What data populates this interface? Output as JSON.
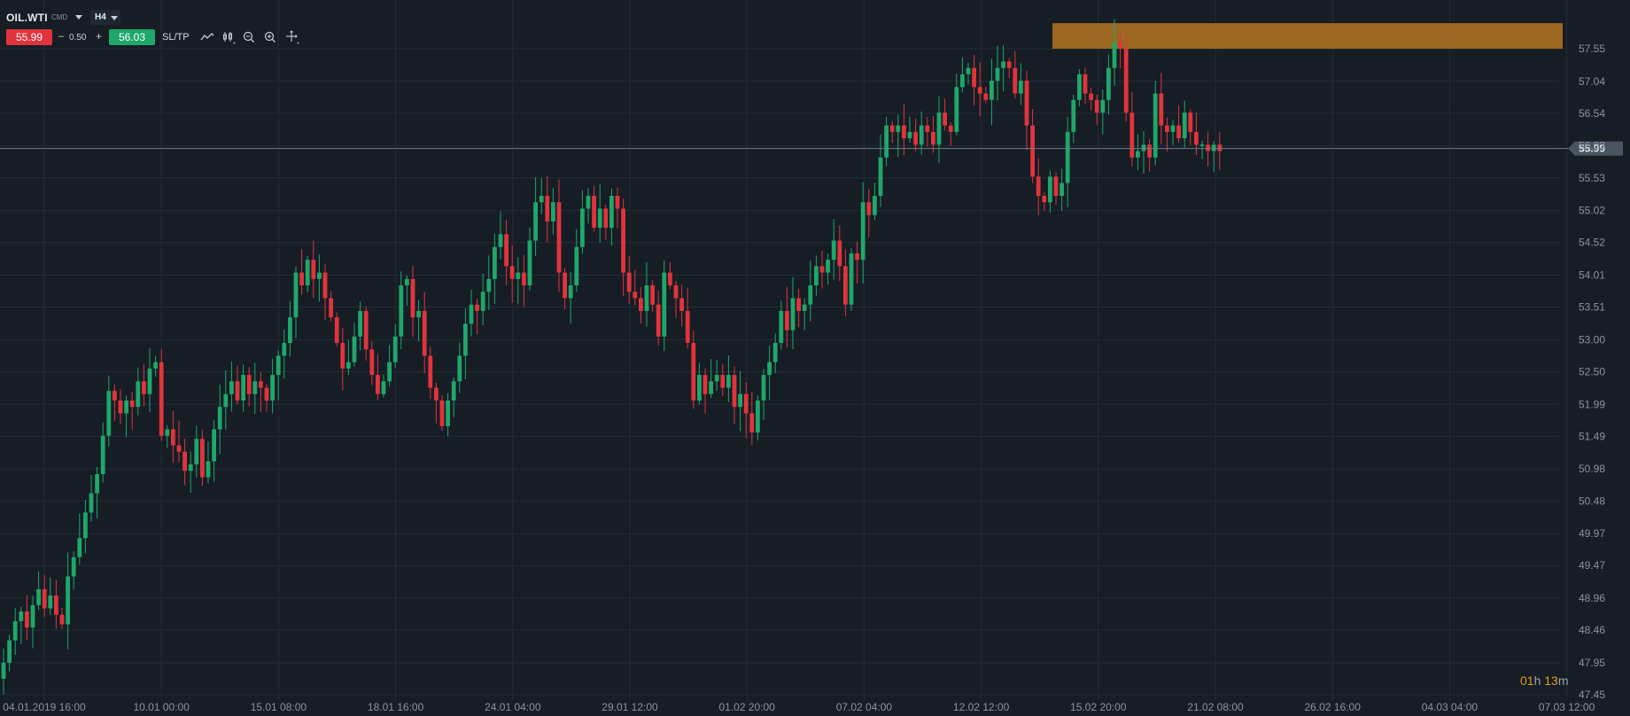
{
  "toolbar": {
    "symbol": "OIL.WTI",
    "category": "CMD",
    "timeframe": "H4",
    "sell_price": "55.99",
    "minus": "–",
    "spread": "0.50",
    "plus": "+",
    "buy_price": "56.03",
    "sltp_label": "SL/TP",
    "icons": [
      "line-chart-icon",
      "candle-style-icon",
      "zoom-out-icon",
      "zoom-in-icon",
      "crosshair-icon"
    ]
  },
  "timer": {
    "hours": "01",
    "h_unit": "h",
    "minutes": "13",
    "m_unit": "m"
  },
  "colors": {
    "up": "#1fa76a",
    "down": "#e0343c",
    "background": "#161d25",
    "grid": "#232c36",
    "zone": "#b37421",
    "label": "#8a949e"
  },
  "chart_data": {
    "type": "candlestick",
    "symbol": "OIL.WTI",
    "timeframe": "H4",
    "current_price": "55.99",
    "y_ticks": [
      "57.55",
      "57.04",
      "56.54",
      "56.03",
      "55.53",
      "55.02",
      "54.52",
      "54.01",
      "53.51",
      "53.00",
      "52.50",
      "51.99",
      "51.49",
      "50.98",
      "50.48",
      "49.97",
      "49.47",
      "48.96",
      "48.46",
      "47.95",
      "47.45"
    ],
    "y_tick_values": [
      57.55,
      57.04,
      56.54,
      56.03,
      55.53,
      55.02,
      54.52,
      54.01,
      53.51,
      53.0,
      52.5,
      51.99,
      51.49,
      50.98,
      50.48,
      49.97,
      49.47,
      48.96,
      48.46,
      47.95,
      47.45
    ],
    "x_ticks": [
      "04.01.2019 16:00",
      "10.01 00:00",
      "15.01 08:00",
      "18.01 16:00",
      "24.01 04:00",
      "29.01 12:00",
      "01.02 20:00",
      "07.02 04:00",
      "12.02 12:00",
      "15.02 20:00",
      "21.02 08:00",
      "26.02 16:00",
      "04.03 04:00",
      "07.03 12:00"
    ],
    "ylim": [
      47.45,
      57.55
    ],
    "resistance_zone": {
      "from": 57.55,
      "to": 57.95
    },
    "closes": [
      47.95,
      48.3,
      48.6,
      48.75,
      48.5,
      48.85,
      49.1,
      48.8,
      49.0,
      48.7,
      48.55,
      49.3,
      49.6,
      49.9,
      50.3,
      50.6,
      50.9,
      51.5,
      52.2,
      52.05,
      51.85,
      52.05,
      51.95,
      52.35,
      52.15,
      52.55,
      52.65,
      51.5,
      51.6,
      51.35,
      51.25,
      50.95,
      51.05,
      51.45,
      50.85,
      51.1,
      51.6,
      51.95,
      52.15,
      52.35,
      52.05,
      52.45,
      52.15,
      52.35,
      52.25,
      52.05,
      52.45,
      52.75,
      52.95,
      53.35,
      54.05,
      53.85,
      54.25,
      53.95,
      54.05,
      53.65,
      53.35,
      52.95,
      52.55,
      52.65,
      53.05,
      53.45,
      52.85,
      52.45,
      52.15,
      52.35,
      52.65,
      53.05,
      53.85,
      53.95,
      53.35,
      53.45,
      52.75,
      52.25,
      52.05,
      51.65,
      52.05,
      52.35,
      52.75,
      53.25,
      53.55,
      53.45,
      53.75,
      53.95,
      54.45,
      54.65,
      54.15,
      53.95,
      54.05,
      53.85,
      54.55,
      55.15,
      55.25,
      54.85,
      55.15,
      54.05,
      53.65,
      53.85,
      54.45,
      55.05,
      55.25,
      54.75,
      55.05,
      54.75,
      55.25,
      55.05,
      54.05,
      53.75,
      53.65,
      53.45,
      53.85,
      53.55,
      53.05,
      54.05,
      53.85,
      53.65,
      53.45,
      52.95,
      52.05,
      52.45,
      52.15,
      52.35,
      52.45,
      52.25,
      52.45,
      51.95,
      52.15,
      51.85,
      51.55,
      52.05,
      52.45,
      52.65,
      52.95,
      53.45,
      53.15,
      53.65,
      53.45,
      53.55,
      53.85,
      54.15,
      54.05,
      54.25,
      54.55,
      54.15,
      53.55,
      54.35,
      54.25,
      55.15,
      54.95,
      55.25,
      55.85,
      56.35,
      56.25,
      56.35,
      56.15,
      56.25,
      56.05,
      56.35,
      56.25,
      56.05,
      56.55,
      56.35,
      56.25,
      56.95,
      57.15,
      57.25,
      56.95,
      56.85,
      56.75,
      57.05,
      57.25,
      57.35,
      57.25,
      56.85,
      57.05,
      56.35,
      55.55,
      55.25,
      55.15,
      55.55,
      55.25,
      55.45,
      56.25,
      56.75,
      57.15,
      56.85,
      56.75,
      56.55,
      56.75,
      57.25,
      57.65,
      57.55,
      56.55,
      55.85,
      55.95,
      56.05,
      55.85,
      56.85,
      56.35,
      56.25,
      56.35,
      56.15,
      56.55,
      56.25,
      56.05,
      56.05,
      55.95,
      56.05,
      55.95
    ]
  }
}
